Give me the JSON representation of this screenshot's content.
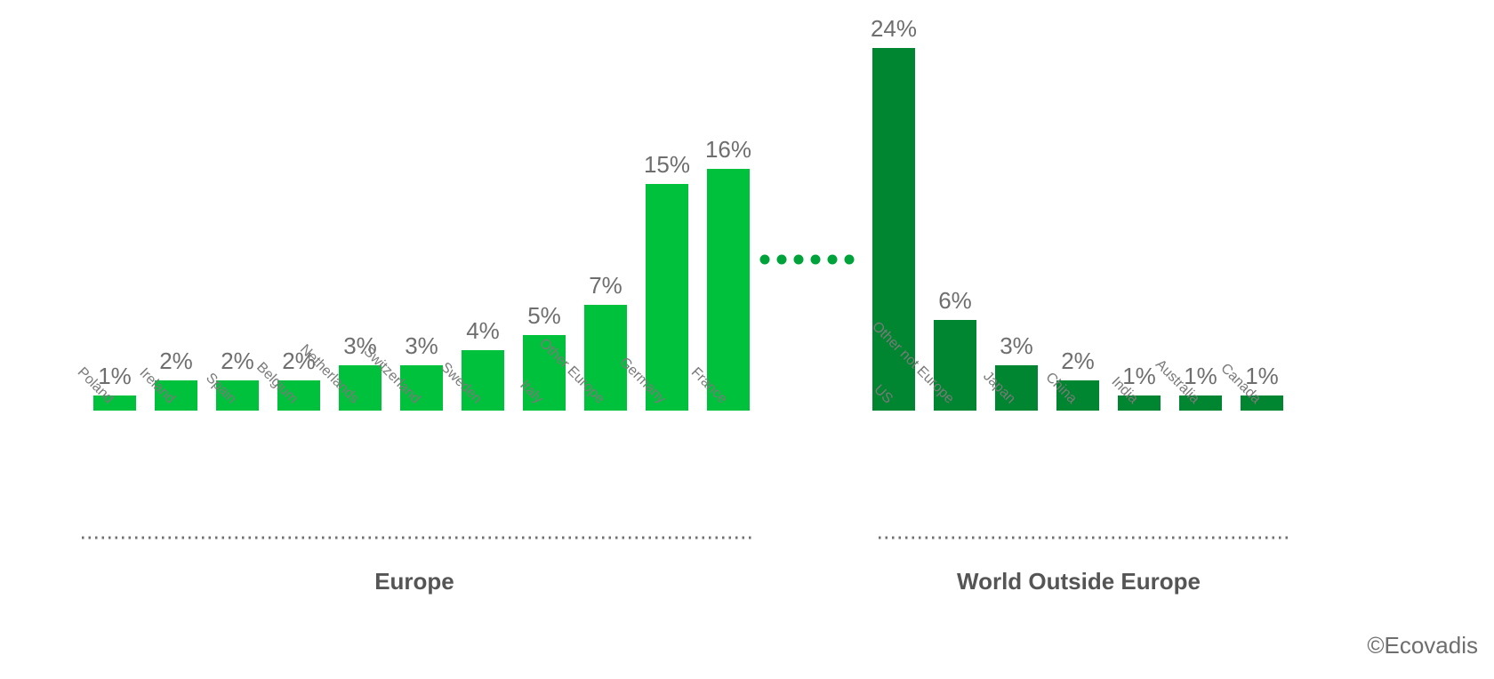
{
  "chart_data": {
    "type": "bar",
    "groups": [
      {
        "name": "Europe",
        "color": "#00c13b",
        "categories": [
          "Poland",
          "Ireland",
          "Spain",
          "Belgium",
          "Netherlands",
          "Switzerland",
          "Sweden",
          "Italy",
          "Other Europe",
          "Germany",
          "France"
        ],
        "values": [
          1,
          2,
          2,
          2,
          3,
          3,
          4,
          5,
          7,
          15,
          16
        ],
        "labels": [
          "1%",
          "2%",
          "2%",
          "2%",
          "3%",
          "3%",
          "4%",
          "5%",
          "7%",
          "15%",
          "16%"
        ]
      },
      {
        "name": "World Outside Europe",
        "color": "#008530",
        "categories": [
          "US",
          "Other not Europe",
          "Japan",
          "China",
          "India",
          "Australia",
          "Canada"
        ],
        "values": [
          24,
          6,
          3,
          2,
          1,
          1,
          1
        ],
        "labels": [
          "24%",
          "6%",
          "3%",
          "2%",
          "1%",
          "1%",
          "1%"
        ]
      }
    ],
    "value_unit": "%",
    "ylim": [
      0,
      24
    ],
    "grid": false,
    "legend": "none",
    "connector_dot_color": "#00a33a",
    "separator_dot_color": "#707070"
  },
  "footer": {
    "copyright": "©Ecovadis"
  }
}
